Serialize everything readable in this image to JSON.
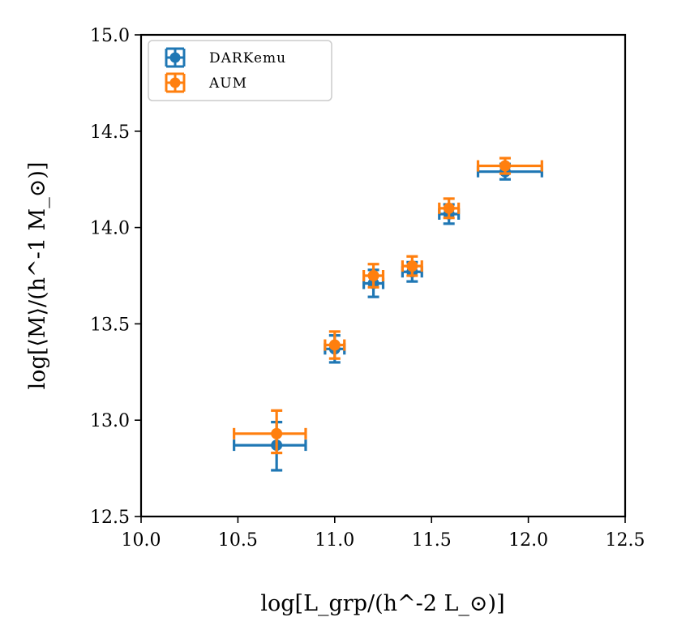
{
  "chart_data": {
    "type": "scatter",
    "title": "",
    "xlabel": "log[L_grp/(h^-2 L_⊙)]",
    "ylabel": "log[⟨M⟩/(h^-1 M_⊙)]",
    "xlim": [
      10.0,
      12.5
    ],
    "ylim": [
      12.5,
      15.0
    ],
    "xticks": [
      "10.0",
      "10.5",
      "11.0",
      "11.5",
      "12.0",
      "12.5"
    ],
    "yticks": [
      "12.5",
      "13.0",
      "13.5",
      "14.0",
      "14.5",
      "15.0"
    ],
    "legend_position": "upper-left",
    "series": [
      {
        "name": "DARKemu",
        "color": "#1f77b4",
        "points": [
          {
            "x": 10.7,
            "y": 12.87,
            "xerr": [
              0.22,
              0.15
            ],
            "yerr": [
              0.13,
              0.12
            ]
          },
          {
            "x": 11.0,
            "y": 13.37,
            "xerr": [
              0.05,
              0.05
            ],
            "yerr": [
              0.07,
              0.07
            ]
          },
          {
            "x": 11.2,
            "y": 13.71,
            "xerr": [
              0.05,
              0.05
            ],
            "yerr": [
              0.07,
              0.07
            ]
          },
          {
            "x": 11.4,
            "y": 13.77,
            "xerr": [
              0.05,
              0.05
            ],
            "yerr": [
              0.05,
              0.05
            ]
          },
          {
            "x": 11.59,
            "y": 14.07,
            "xerr": [
              0.05,
              0.05
            ],
            "yerr": [
              0.05,
              0.05
            ]
          },
          {
            "x": 11.88,
            "y": 14.29,
            "xerr": [
              0.14,
              0.19
            ],
            "yerr": [
              0.04,
              0.04
            ]
          }
        ]
      },
      {
        "name": "AUM",
        "color": "#ff7f0e",
        "points": [
          {
            "x": 10.7,
            "y": 12.93,
            "xerr": [
              0.22,
              0.15
            ],
            "yerr": [
              0.1,
              0.12
            ]
          },
          {
            "x": 11.0,
            "y": 13.39,
            "xerr": [
              0.05,
              0.05
            ],
            "yerr": [
              0.07,
              0.07
            ]
          },
          {
            "x": 11.2,
            "y": 13.75,
            "xerr": [
              0.05,
              0.05
            ],
            "yerr": [
              0.06,
              0.06
            ]
          },
          {
            "x": 11.4,
            "y": 13.8,
            "xerr": [
              0.05,
              0.05
            ],
            "yerr": [
              0.05,
              0.05
            ]
          },
          {
            "x": 11.59,
            "y": 14.1,
            "xerr": [
              0.05,
              0.05
            ],
            "yerr": [
              0.05,
              0.05
            ]
          },
          {
            "x": 11.88,
            "y": 14.32,
            "xerr": [
              0.14,
              0.19
            ],
            "yerr": [
              0.04,
              0.04
            ]
          }
        ]
      }
    ]
  }
}
